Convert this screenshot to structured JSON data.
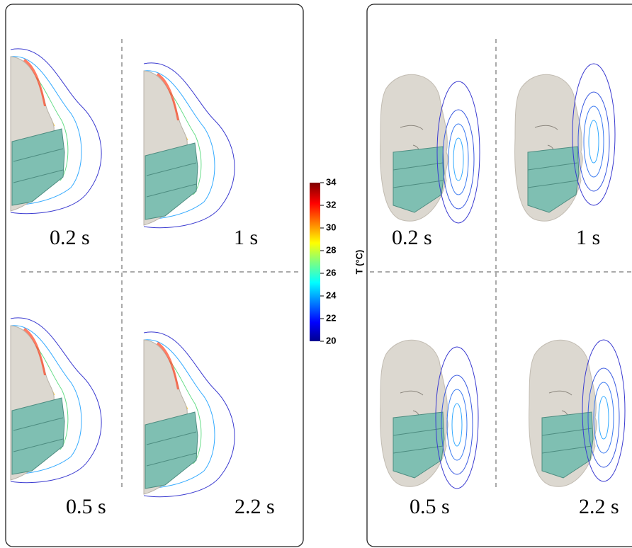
{
  "left_panel": {
    "labels": [
      "0.2 s",
      "1 s",
      "0.5 s",
      "2.2 s"
    ]
  },
  "right_panel": {
    "labels": [
      "0.2 s",
      "1 s",
      "0.5 s",
      "2.2 s"
    ]
  },
  "colorbar": {
    "title": "T (°C)",
    "lim": [
      20,
      34
    ],
    "ticks": [
      20,
      22,
      24,
      26,
      28,
      30,
      32,
      34
    ]
  }
}
